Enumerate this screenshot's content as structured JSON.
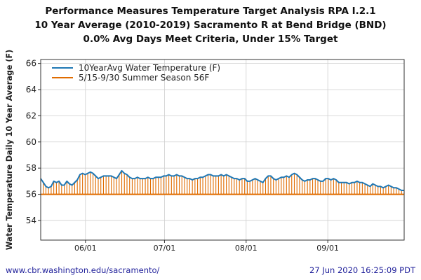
{
  "chart_data": {
    "type": "line",
    "title": [
      "Performance Measures Temperature Target Analysis RPA I.2.1",
      "10 Year Average (2010-2019) Sacramento R at Bend Bridge (BND)",
      "0.0% Avg Days Meet Criteria, Under 15% Target"
    ],
    "xlabel": "",
    "ylabel": "Water Temperature Daily 10 Year Average (F)",
    "ylim": [
      52.5,
      66.3
    ],
    "yticks": [
      54,
      56,
      58,
      60,
      62,
      64,
      66
    ],
    "xlim": [
      "2020-05-15",
      "2020-09-30"
    ],
    "xticks": [
      {
        "date": "2020-06-01",
        "label": "06/01"
      },
      {
        "date": "2020-07-01",
        "label": "07/01"
      },
      {
        "date": "2020-08-01",
        "label": "08/01"
      },
      {
        "date": "2020-09-01",
        "label": "09/01"
      }
    ],
    "grid": true,
    "legend_position": "top-left",
    "series": [
      {
        "name": "10YearAvg Water Temperature (F)",
        "color": "#1f77b4",
        "x_start": "2020-05-15",
        "x_end": "2020-09-30",
        "values": [
          57.2,
          56.9,
          56.6,
          56.5,
          56.6,
          57.0,
          56.9,
          57.0,
          56.7,
          56.7,
          57.0,
          56.8,
          56.7,
          56.9,
          57.1,
          57.5,
          57.6,
          57.5,
          57.6,
          57.7,
          57.6,
          57.4,
          57.2,
          57.3,
          57.4,
          57.4,
          57.4,
          57.4,
          57.3,
          57.2,
          57.5,
          57.8,
          57.6,
          57.5,
          57.3,
          57.2,
          57.2,
          57.3,
          57.2,
          57.2,
          57.2,
          57.3,
          57.2,
          57.2,
          57.3,
          57.3,
          57.3,
          57.4,
          57.4,
          57.5,
          57.4,
          57.4,
          57.5,
          57.4,
          57.4,
          57.3,
          57.2,
          57.2,
          57.1,
          57.2,
          57.2,
          57.3,
          57.3,
          57.4,
          57.5,
          57.5,
          57.4,
          57.4,
          57.4,
          57.5,
          57.4,
          57.5,
          57.4,
          57.3,
          57.2,
          57.2,
          57.1,
          57.2,
          57.2,
          57.0,
          57.0,
          57.1,
          57.2,
          57.1,
          57.0,
          56.9,
          57.2,
          57.4,
          57.4,
          57.2,
          57.1,
          57.2,
          57.3,
          57.3,
          57.4,
          57.3,
          57.5,
          57.6,
          57.5,
          57.3,
          57.1,
          57.0,
          57.1,
          57.1,
          57.2,
          57.2,
          57.1,
          57.0,
          57.0,
          57.2,
          57.2,
          57.1,
          57.2,
          57.1,
          56.9,
          56.9,
          56.9,
          56.9,
          56.8,
          56.9,
          56.9,
          57.0,
          56.9,
          56.9,
          56.8,
          56.7,
          56.6,
          56.8,
          56.7,
          56.6,
          56.6,
          56.5,
          56.6,
          56.7,
          56.6,
          56.5,
          56.5,
          56.4,
          56.3,
          56.3
        ]
      },
      {
        "name": "5/15-9/30 Summer Season 56F",
        "color": "#e06c00",
        "values": [
          56,
          56
        ]
      }
    ]
  },
  "footer": {
    "url": "www.cbr.washington.edu/sacramento/",
    "timestamp": "27 Jun 2020 16:25:09 PDT"
  }
}
